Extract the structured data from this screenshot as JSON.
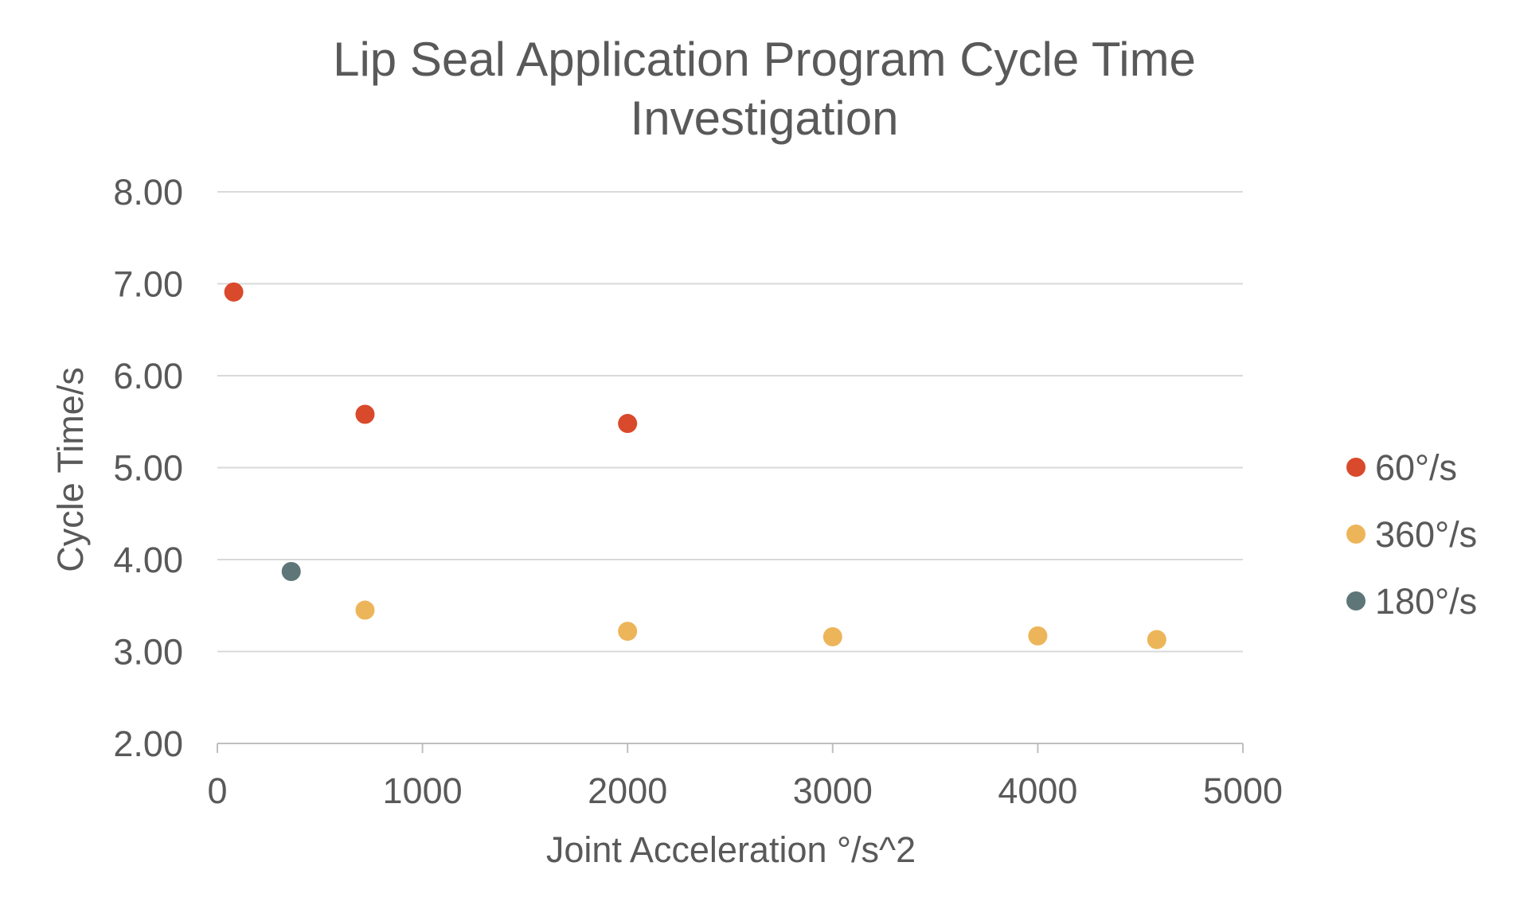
{
  "chart_data": {
    "type": "scatter",
    "title_lines": [
      "Lip Seal Application Program Cycle Time",
      "Investigation"
    ],
    "xlabel": "Joint Acceleration °/s^2",
    "ylabel": "Cycle Time/s",
    "xlim": [
      0,
      5000
    ],
    "ylim": [
      2.0,
      8.0
    ],
    "x_ticks": [
      "0",
      "1000",
      "2000",
      "3000",
      "4000",
      "5000"
    ],
    "y_ticks": [
      "2.00",
      "3.00",
      "4.00",
      "5.00",
      "6.00",
      "7.00",
      "8.00"
    ],
    "grid": "horizontal",
    "legend_position": "right",
    "series": [
      {
        "name": "60°/s",
        "color": "#d9492b",
        "points": [
          [
            80,
            6.91
          ],
          [
            720,
            5.58
          ],
          [
            2000,
            5.48
          ]
        ]
      },
      {
        "name": "360°/s",
        "color": "#edb55a",
        "points": [
          [
            720,
            3.45
          ],
          [
            2000,
            3.22
          ],
          [
            3000,
            3.16
          ],
          [
            4000,
            3.17
          ],
          [
            4580,
            3.13
          ]
        ]
      },
      {
        "name": "180°/s",
        "color": "#5f7679",
        "points": [
          [
            360,
            3.87
          ]
        ]
      }
    ]
  }
}
